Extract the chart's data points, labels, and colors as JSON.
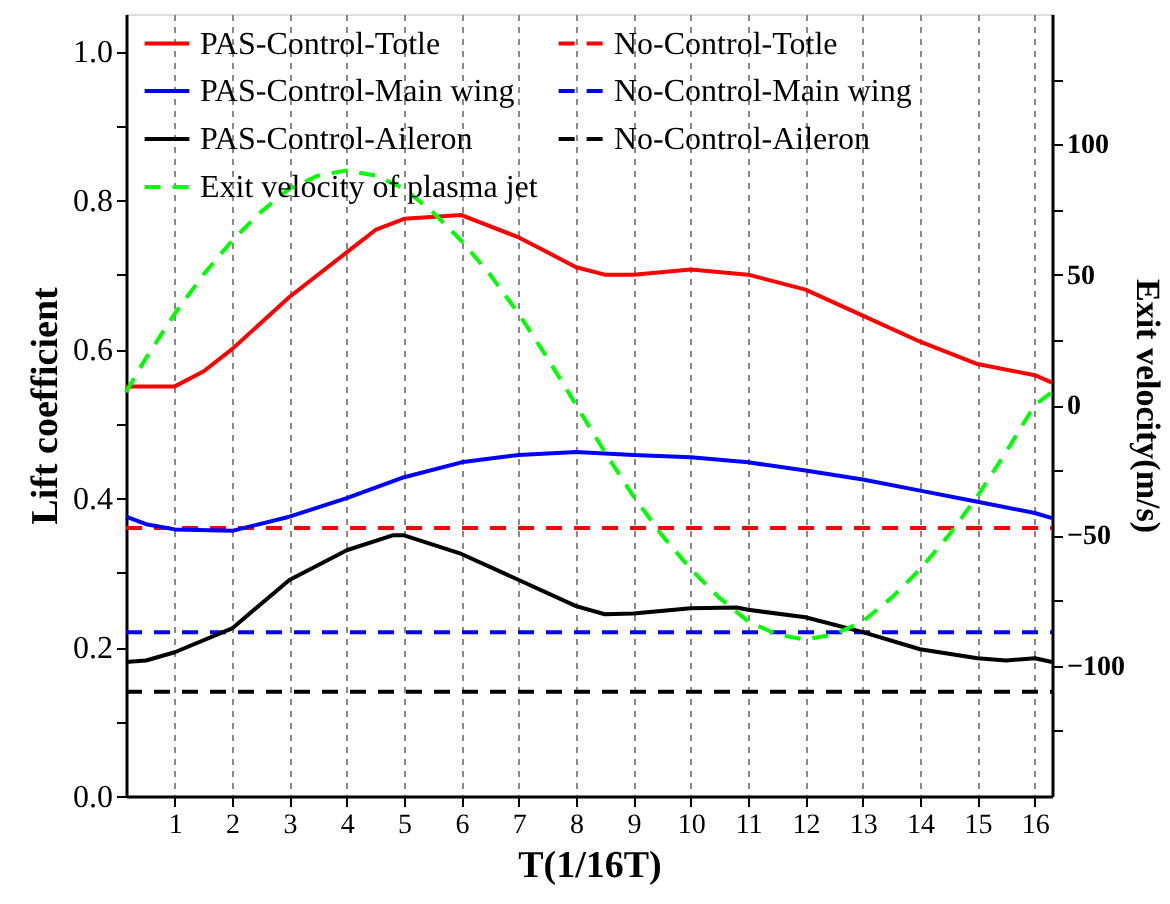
{
  "chart_data": {
    "type": "line",
    "xlabel": "T(1/16T)",
    "ylabel": "Lift coefficient",
    "y2label": "Exit velocity(m/s)",
    "xlim": [
      0.15,
      16.3
    ],
    "xticks": [
      1,
      2,
      3,
      4,
      5,
      6,
      7,
      8,
      9,
      10,
      11,
      12,
      13,
      14,
      15,
      16
    ],
    "ylim": [
      0,
      1.05
    ],
    "yticks": [
      {
        "value": 0,
        "label": "0.0"
      },
      {
        "value": 0.1,
        "label": null
      },
      0.2,
      {
        "value": 0.3,
        "label": null
      },
      0.4,
      {
        "value": 0.5,
        "label": null
      },
      0.6,
      {
        "value": 0.7,
        "label": null
      },
      0.8,
      {
        "value": 0.9,
        "label": null
      },
      {
        "value": 1,
        "label": "1.0"
      }
    ],
    "y2lim": [
      -150,
      150
    ],
    "y2ticks": [
      {
        "value": -125,
        "label": null
      },
      -100,
      {
        "value": -75,
        "label": null
      },
      -50,
      {
        "value": -25,
        "label": null
      },
      0,
      {
        "value": 25,
        "label": null
      },
      50,
      {
        "value": 75,
        "label": null
      },
      100,
      {
        "value": 125,
        "label": null
      }
    ],
    "grid": "x",
    "legend": "top",
    "marker": "none",
    "series": [
      {
        "name": "PAS-Control-Totle",
        "color": "#ff0000",
        "line_style": "solid",
        "x": [
          0.15,
          1,
          1.5,
          2,
          3,
          4,
          4.5,
          5,
          6,
          7,
          7.5,
          8,
          8.5,
          9,
          10,
          11,
          12,
          13,
          14,
          15,
          16,
          16.3
        ],
        "values": [
          0.55,
          0.55,
          0.57,
          0.6,
          0.67,
          0.73,
          0.76,
          0.775,
          0.78,
          0.75,
          0.73,
          0.71,
          0.7,
          0.7,
          0.707,
          0.7,
          0.68,
          0.645,
          0.61,
          0.58,
          0.565,
          0.555
        ]
      },
      {
        "name": "No-Control-Totle",
        "color": "#ff0000",
        "line_style": "dashed",
        "x": [
          0.15,
          16.3
        ],
        "values": [
          0.36,
          0.36
        ]
      },
      {
        "name": "PAS-Control-Main wing",
        "color": "#0000ff",
        "line_style": "solid",
        "x": [
          0.15,
          0.5,
          1,
          2,
          3,
          4,
          5,
          6,
          7,
          8,
          9,
          10,
          11,
          12,
          13,
          14,
          15,
          16,
          16.3
        ],
        "values": [
          0.375,
          0.365,
          0.358,
          0.356,
          0.375,
          0.4,
          0.428,
          0.448,
          0.458,
          0.462,
          0.458,
          0.455,
          0.448,
          0.437,
          0.425,
          0.41,
          0.395,
          0.38,
          0.373
        ]
      },
      {
        "name": "No-Control-Main wing",
        "color": "#0000ff",
        "line_style": "dashed",
        "x": [
          0.15,
          16.3
        ],
        "values": [
          0.22,
          0.22
        ]
      },
      {
        "name": "PAS-Control-Aileron",
        "color": "#000000",
        "line_style": "solid",
        "x": [
          0.15,
          0.5,
          1,
          2,
          3,
          4,
          4.8,
          5,
          6,
          7,
          8,
          8.5,
          9,
          10,
          10.8,
          11,
          12,
          13,
          14,
          15,
          15.5,
          16,
          16.3
        ],
        "values": [
          0.18,
          0.182,
          0.193,
          0.225,
          0.29,
          0.33,
          0.35,
          0.35,
          0.325,
          0.29,
          0.255,
          0.244,
          0.245,
          0.252,
          0.253,
          0.25,
          0.24,
          0.22,
          0.197,
          0.185,
          0.182,
          0.185,
          0.18
        ]
      },
      {
        "name": "No-Control-Aileron",
        "color": "#000000",
        "line_style": "dashed",
        "x": [
          0.15,
          16.3
        ],
        "values": [
          0.14,
          0.14
        ]
      },
      {
        "name": "Exit velocity of plasma jet",
        "color": "#00ff00",
        "line_style": "dashed",
        "axis": "y2",
        "x": [
          0.15,
          0.5,
          1,
          1.5,
          2,
          2.5,
          3,
          3.5,
          4,
          4.5,
          5,
          5.5,
          6,
          6.5,
          7,
          7.5,
          8,
          8.5,
          9,
          9.5,
          10,
          10.5,
          11,
          11.5,
          12,
          12.5,
          13,
          13.5,
          14,
          14.5,
          15,
          15.5,
          16,
          16.3
        ],
        "values": [
          5,
          18,
          35,
          50,
          63,
          74,
          83,
          88,
          90,
          88,
          83,
          74,
          63,
          50,
          35,
          18,
          0,
          -18,
          -35,
          -50,
          -63,
          -74,
          -83,
          -88,
          -90,
          -88,
          -83,
          -74,
          -63,
          -50,
          -35,
          -18,
          0,
          5
        ]
      }
    ]
  }
}
